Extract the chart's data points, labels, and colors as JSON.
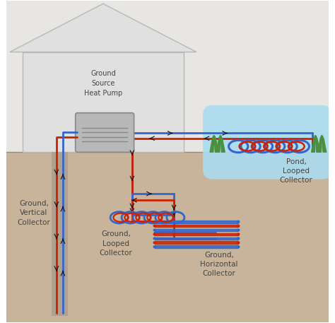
{
  "bg_color": "#c8b49a",
  "sky_color": "#e8e6e2",
  "house_color": "#dcdcdc",
  "ground_color": "#c8b49a",
  "pond_color": "#aadcf0",
  "pipe_red": "#cc2200",
  "pipe_blue": "#3366cc",
  "pump_color": "#b8b8b8",
  "text_color": "#444444",
  "title": "Ground\nSource\nHeat Pump",
  "label_vertical": "Ground,\nVertical\nCollector",
  "label_looped": "Ground,\nLooped\nCollector",
  "label_horizontal": "Ground,\nHorizontal\nCollector",
  "label_pond": "Pond,\nLooped\nCollector",
  "figsize": [
    4.74,
    4.57
  ],
  "dpi": 100
}
